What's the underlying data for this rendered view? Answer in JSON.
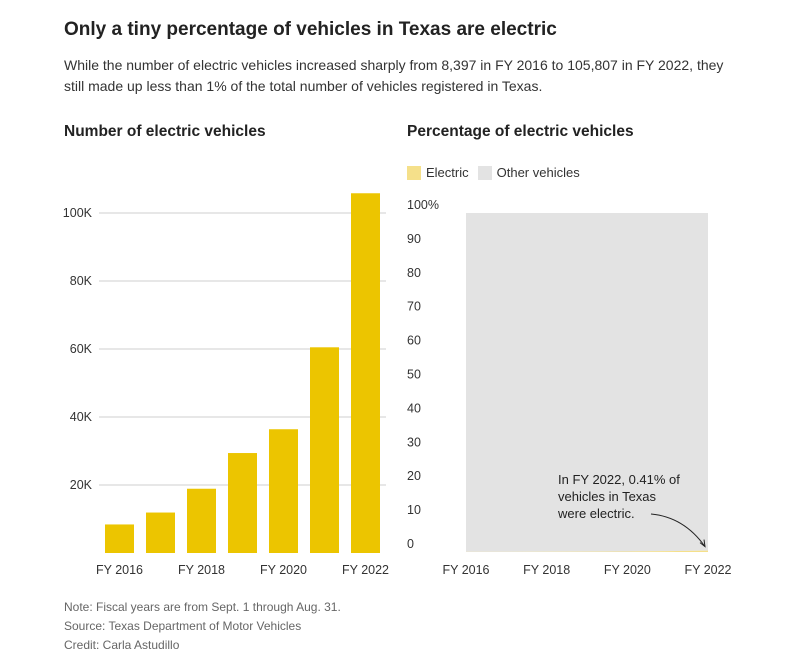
{
  "title": "Only a tiny percentage of vehicles in Texas are electric",
  "subtitle": "While the number of electric vehicles increased sharply from 8,397 in FY 2016 to 105,807 in FY 2022, they still made up less than 1% of the total number of vehicles registered in Texas.",
  "colors": {
    "electric": "#ecc500",
    "electric_light": "#f5e08a",
    "other": "#e3e3e3",
    "grid": "#cfcfcf",
    "axis_text": "#333333"
  },
  "chart_data": [
    {
      "type": "bar",
      "title": "Number of electric vehicles",
      "categories": [
        "FY 2016",
        "FY 2017",
        "FY 2018",
        "FY 2019",
        "FY 2020",
        "FY 2021",
        "FY 2022"
      ],
      "x_tick_labels": [
        "FY 2016",
        "",
        "FY 2018",
        "",
        "FY 2020",
        "",
        "FY 2022"
      ],
      "values": [
        8397,
        11900,
        18900,
        29400,
        36400,
        60500,
        105807
      ],
      "y_ticks": [
        20000,
        40000,
        60000,
        80000,
        100000
      ],
      "y_tick_labels": [
        "20K",
        "40K",
        "60K",
        "80K",
        "100K"
      ],
      "ylim": [
        0,
        110000
      ],
      "grid": true,
      "xlabel": "",
      "ylabel": ""
    },
    {
      "type": "area",
      "title": "Percentage of electric vehicles",
      "legend": [
        "Electric",
        "Other vehicles"
      ],
      "legend_position": "top-left",
      "categories": [
        "FY 2016",
        "FY 2017",
        "FY 2018",
        "FY 2019",
        "FY 2020",
        "FY 2021",
        "FY 2022"
      ],
      "x_tick_labels": [
        "FY 2016",
        "",
        "FY 2018",
        "",
        "FY 2020",
        "",
        "FY 2022"
      ],
      "series": [
        {
          "name": "Electric",
          "values": [
            0.04,
            0.05,
            0.08,
            0.12,
            0.15,
            0.24,
            0.41
          ]
        },
        {
          "name": "Other vehicles",
          "values": [
            99.96,
            99.95,
            99.92,
            99.88,
            99.85,
            99.76,
            99.59
          ]
        }
      ],
      "y_ticks": [
        0,
        10,
        20,
        30,
        40,
        50,
        60,
        70,
        80,
        90,
        100
      ],
      "y_tick_labels": [
        "0",
        "10",
        "20",
        "30",
        "40",
        "50",
        "60",
        "70",
        "80",
        "90",
        "100%"
      ],
      "ylim": [
        0,
        100
      ],
      "annotation": {
        "lines": [
          "In FY 2022, 0.41% of",
          "vehicles in Texas",
          "were electric."
        ],
        "points_to": "FY 2022"
      },
      "xlabel": "",
      "ylabel": ""
    }
  ],
  "footer": {
    "note": "Note: Fiscal years are from Sept. 1 through Aug. 31.",
    "source": "Source: Texas Department of Motor Vehicles",
    "credit": "Credit: Carla Astudillo"
  }
}
